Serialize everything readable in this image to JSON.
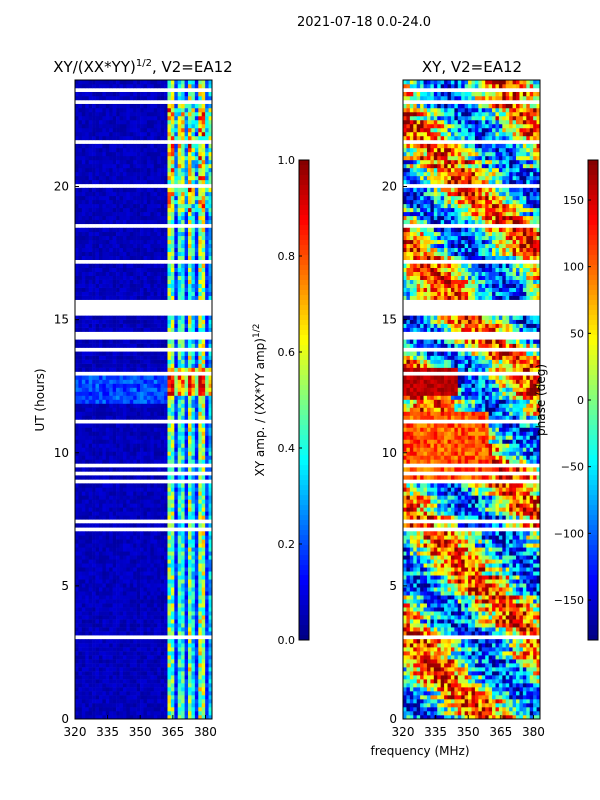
{
  "suptitle": "2021-07-18 0.0-24.0",
  "chart_data": [
    {
      "type": "heatmap",
      "title": "XY/(XX*YY)^1/2, V2=EA12",
      "xlabel": "",
      "ylabel": "UT (hours)",
      "xlim": [
        320,
        383
      ],
      "ylim": [
        0,
        24
      ],
      "x_ticks": [
        320,
        335,
        350,
        365,
        380
      ],
      "y_ticks": [
        0,
        5,
        10,
        15,
        20
      ],
      "colorbar": {
        "label": "XY amp. / (XX*YY amp)^1/2",
        "range": [
          0.0,
          1.0
        ],
        "ticks": [
          "0.0",
          "0.2",
          "0.4",
          "0.6",
          "0.8",
          "1.0"
        ],
        "colormap": "jet"
      },
      "description_of_values": "amplitude near 0.0-0.1 for 320-361 MHz, 0.3-0.9 in bands 362-382 MHz, strongest near 12-13 h"
    },
    {
      "type": "heatmap",
      "title": "XY, V2=EA12",
      "xlabel": "frequency (MHz)",
      "ylabel": "",
      "xlim": [
        320,
        383
      ],
      "ylim": [
        0,
        24
      ],
      "x_ticks": [
        320,
        335,
        350,
        365,
        380
      ],
      "y_ticks": [
        0,
        5,
        10,
        15,
        20
      ],
      "colorbar": {
        "label": "phase (deg)",
        "range": [
          -180,
          180
        ],
        "ticks": [
          "−150",
          "−100",
          "−50",
          "0",
          "50",
          "100",
          "150"
        ],
        "colormap": "jet"
      }
    }
  ]
}
